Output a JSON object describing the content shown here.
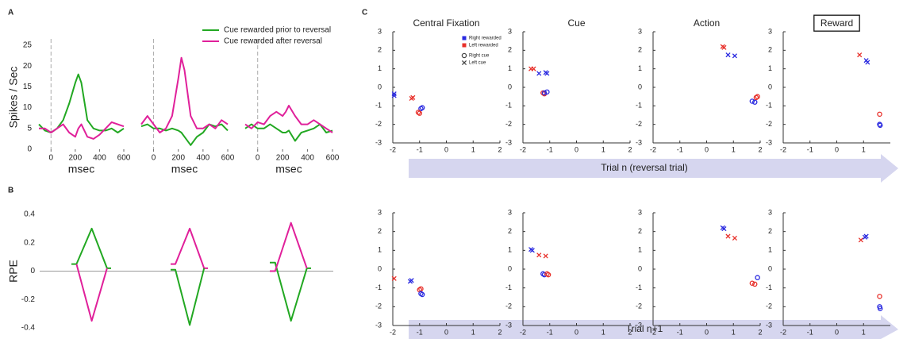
{
  "panel_labels": [
    "A",
    "B",
    "C"
  ],
  "arrows": [
    "Trial n (reversal trial)",
    "Trial n+1"
  ],
  "chart_data": [
    {
      "type": "line",
      "ylabel": "Spikes / Sec",
      "xlabel": "msec",
      "xlim": [
        -100,
        600
      ],
      "xticks": [
        0,
        200,
        400,
        600
      ],
      "ylim": [
        0,
        25
      ],
      "yticks": [
        0,
        5,
        10,
        15,
        20,
        25
      ],
      "legend": "upper right",
      "x": [
        -100,
        -50,
        0,
        50,
        100,
        150,
        200,
        225,
        250,
        300,
        350,
        400,
        450,
        500,
        550,
        600
      ],
      "series": [
        {
          "name": "Cue rewarded prior to reversal",
          "color": "#22a822",
          "values": [
            6,
            4.5,
            4,
            5,
            7,
            11,
            16,
            18,
            16,
            7,
            5,
            4.5,
            4.5,
            5,
            4,
            5
          ]
        },
        {
          "name": "Cue rewarded after reversal",
          "color": "#e0209a",
          "values": [
            5,
            5,
            4,
            5,
            6,
            4,
            3,
            5,
            6,
            3,
            2.5,
            3.5,
            5,
            6.5,
            6,
            5.5
          ]
        }
      ]
    },
    {
      "type": "line",
      "xlabel": "msec",
      "xlim": [
        -100,
        600
      ],
      "xticks": [
        0,
        200,
        400,
        600
      ],
      "ylim": [
        0,
        25
      ],
      "x": [
        -100,
        -50,
        0,
        50,
        100,
        150,
        200,
        225,
        250,
        300,
        350,
        400,
        450,
        500,
        550,
        600
      ],
      "series": [
        {
          "color": "#22a822",
          "values": [
            5.5,
            6,
            5,
            5,
            4.5,
            5,
            4.5,
            4,
            3,
            1,
            3,
            4,
            6,
            5.5,
            6,
            4.5
          ]
        },
        {
          "color": "#e0209a",
          "values": [
            6,
            8,
            6,
            4,
            5,
            8,
            17,
            22,
            19,
            8,
            5,
            5,
            6,
            5,
            7,
            6
          ]
        }
      ]
    },
    {
      "type": "line",
      "xlabel": "msec",
      "xlim": [
        -100,
        600
      ],
      "xticks": [
        0,
        200,
        400,
        600
      ],
      "ylim": [
        0,
        25
      ],
      "x": [
        -100,
        -50,
        0,
        50,
        100,
        150,
        200,
        225,
        250,
        300,
        350,
        400,
        450,
        500,
        550,
        600
      ],
      "series": [
        {
          "color": "#22a822",
          "values": [
            5,
            6,
            5,
            5,
            6,
            5,
            4,
            4,
            4.5,
            2,
            4,
            4.5,
            5,
            6,
            4,
            4.5
          ]
        },
        {
          "color": "#e0209a",
          "values": [
            6,
            5,
            6.5,
            6,
            8,
            9,
            8,
            9,
            10.5,
            8,
            6,
            6,
            7,
            6,
            5,
            4
          ]
        }
      ]
    },
    {
      "type": "line",
      "ylabel": "RPE",
      "ylim": [
        -0.4,
        0.4
      ],
      "yticks": [
        -0.4,
        -0.2,
        0,
        0.2,
        0.4
      ],
      "x": [
        0,
        0.5,
        2,
        3.5,
        3.9
      ],
      "series": [
        {
          "color": "#22a822",
          "values": [
            0.05,
            0.05,
            0.3,
            0.02,
            0.02
          ]
        },
        {
          "color": "#e0209a",
          "values": [
            null,
            0.05,
            -0.35,
            0.02,
            null
          ]
        }
      ]
    },
    {
      "type": "line",
      "ylim": [
        -0.4,
        0.4
      ],
      "x": [
        0,
        0.5,
        2,
        3.5,
        3.9
      ],
      "series": [
        {
          "color": "#e0209a",
          "values": [
            0.05,
            0.05,
            0.3,
            0.02,
            0.02
          ]
        },
        {
          "color": "#22a822",
          "values": [
            0.01,
            0.01,
            -0.38,
            0.02,
            null
          ]
        }
      ]
    },
    {
      "type": "line",
      "ylim": [
        -0.4,
        0.4
      ],
      "x": [
        0,
        0.5,
        2,
        3.5,
        3.9
      ],
      "series": [
        {
          "color": "#22a822",
          "values": [
            0.06,
            0.06,
            -0.35,
            0.02,
            0.02
          ]
        },
        {
          "color": "#e0209a",
          "values": [
            0,
            0,
            0.34,
            0.02,
            null
          ]
        }
      ]
    },
    {
      "type": "scatter",
      "title": "Central Fixation",
      "xlim": [
        -2,
        2
      ],
      "xticks": [
        -2,
        -1,
        0,
        1,
        2
      ],
      "ylim": [
        -3,
        3
      ],
      "yticks": [
        -3,
        -2,
        -1,
        0,
        1,
        2,
        3
      ],
      "legend": [
        {
          "label": "Right rewarded",
          "color": "#2a2ae0",
          "marker": "square"
        },
        {
          "label": "Left rewarded",
          "color": "#e8302a",
          "marker": "square"
        },
        {
          "label": "Right cue",
          "color": "#444444",
          "marker": "o"
        },
        {
          "label": "Left cue",
          "color": "#444444",
          "marker": "x"
        }
      ],
      "series": [
        {
          "color": "#2a2ae0",
          "marker": "x",
          "x": [
            -1.95,
            -1.95
          ],
          "y": [
            -0.45,
            -0.35
          ]
        },
        {
          "color": "#2a2ae0",
          "marker": "o",
          "x": [
            -0.9,
            -0.95
          ],
          "y": [
            -1.1,
            -1.15
          ]
        },
        {
          "color": "#e8302a",
          "marker": "x",
          "x": [
            -1.3,
            -1.25
          ],
          "y": [
            -0.6,
            -0.55
          ]
        },
        {
          "color": "#e8302a",
          "marker": "o",
          "x": [
            -1.0,
            -1.05
          ],
          "y": [
            -1.4,
            -1.35
          ]
        }
      ]
    },
    {
      "type": "scatter",
      "title": "Cue",
      "xlim": [
        -2,
        2
      ],
      "xticks": [
        -2,
        -1,
        0,
        1,
        2
      ],
      "ylim": [
        -3,
        3
      ],
      "yticks": [
        -3,
        -2,
        -1,
        0,
        1,
        2,
        3
      ],
      "series": [
        {
          "color": "#e8302a",
          "marker": "x",
          "x": [
            -1.7,
            -1.6
          ],
          "y": [
            1.0,
            1.0
          ]
        },
        {
          "color": "#2a2ae0",
          "marker": "x",
          "x": [
            -1.4,
            -1.15,
            -1.1
          ],
          "y": [
            0.75,
            0.8,
            0.75
          ]
        },
        {
          "color": "#e8302a",
          "marker": "o",
          "x": [
            -1.25,
            -1.2
          ],
          "y": [
            -0.3,
            -0.35
          ]
        },
        {
          "color": "#2a2ae0",
          "marker": "o",
          "x": [
            -1.1,
            -1.2
          ],
          "y": [
            -0.25,
            -0.3
          ]
        }
      ]
    },
    {
      "type": "scatter",
      "title": "Action",
      "xlim": [
        -2,
        2
      ],
      "xticks": [
        -2,
        -1,
        0,
        1,
        2
      ],
      "ylim": [
        -3,
        3
      ],
      "yticks": [
        -3,
        -2,
        -1,
        0,
        1,
        2,
        3
      ],
      "series": [
        {
          "color": "#e8302a",
          "marker": "x",
          "x": [
            0.6,
            0.65
          ],
          "y": [
            2.2,
            2.15
          ]
        },
        {
          "color": "#2a2ae0",
          "marker": "x",
          "x": [
            0.8,
            1.05
          ],
          "y": [
            1.75,
            1.7
          ]
        },
        {
          "color": "#2a2ae0",
          "marker": "o",
          "x": [
            1.7,
            1.8
          ],
          "y": [
            -0.75,
            -0.8
          ]
        },
        {
          "color": "#e8302a",
          "marker": "o",
          "x": [
            1.9,
            1.85
          ],
          "y": [
            -0.5,
            -0.55
          ]
        }
      ]
    },
    {
      "type": "scatter",
      "title": "Reward",
      "title_boxed": true,
      "xlim": [
        -2,
        2
      ],
      "xticks": [
        -2,
        -1,
        0,
        1
      ],
      "ylim": [
        -3,
        3
      ],
      "yticks": [
        -3,
        -2,
        -1,
        0,
        1,
        2,
        3
      ],
      "series": [
        {
          "color": "#e8302a",
          "marker": "x",
          "x": [
            0.85
          ],
          "y": [
            1.75
          ]
        },
        {
          "color": "#2a2ae0",
          "marker": "x",
          "x": [
            1.1,
            1.15
          ],
          "y": [
            1.45,
            1.35
          ]
        },
        {
          "color": "#e8302a",
          "marker": "o",
          "x": [
            1.6
          ],
          "y": [
            -1.45
          ]
        },
        {
          "color": "#2a2ae0",
          "marker": "o",
          "x": [
            1.6,
            1.62
          ],
          "y": [
            -2.0,
            -2.05
          ]
        }
      ]
    },
    {
      "type": "scatter",
      "xlim": [
        -2,
        2
      ],
      "xticks": [
        -2,
        -1,
        0,
        1,
        2
      ],
      "ylim": [
        -3,
        3
      ],
      "yticks": [
        -3,
        -2,
        -1,
        0,
        1,
        2,
        3
      ],
      "series": [
        {
          "color": "#e8302a",
          "marker": "x",
          "x": [
            -1.95
          ],
          "y": [
            -0.5
          ]
        },
        {
          "color": "#2a2ae0",
          "marker": "x",
          "x": [
            -1.3,
            -1.35
          ],
          "y": [
            -0.6,
            -0.65
          ]
        },
        {
          "color": "#e8302a",
          "marker": "o",
          "x": [
            -1.0,
            -0.95
          ],
          "y": [
            -1.1,
            -1.05
          ]
        },
        {
          "color": "#2a2ae0",
          "marker": "o",
          "x": [
            -0.9,
            -0.95
          ],
          "y": [
            -1.35,
            -1.3
          ]
        }
      ]
    },
    {
      "type": "scatter",
      "xlim": [
        -2,
        2
      ],
      "xticks": [
        -2,
        -1,
        0,
        1,
        2
      ],
      "ylim": [
        -3,
        3
      ],
      "yticks": [
        -3,
        -2,
        -1,
        0,
        1,
        2,
        3
      ],
      "series": [
        {
          "color": "#2a2ae0",
          "marker": "x",
          "x": [
            -1.65,
            -1.7
          ],
          "y": [
            1.0,
            1.05
          ]
        },
        {
          "color": "#e8302a",
          "marker": "x",
          "x": [
            -1.4,
            -1.15
          ],
          "y": [
            0.75,
            0.7
          ]
        },
        {
          "color": "#2a2ae0",
          "marker": "o",
          "x": [
            -1.25,
            -1.2
          ],
          "y": [
            -0.25,
            -0.3
          ]
        },
        {
          "color": "#e8302a",
          "marker": "o",
          "x": [
            -1.05,
            -1.1
          ],
          "y": [
            -0.3,
            -0.25
          ]
        }
      ]
    },
    {
      "type": "scatter",
      "xlim": [
        -2,
        2
      ],
      "xticks": [
        -2,
        -1,
        0,
        1,
        2
      ],
      "ylim": [
        -3,
        3
      ],
      "yticks": [
        -3,
        -2,
        -1,
        0,
        1,
        2,
        3
      ],
      "series": [
        {
          "color": "#2a2ae0",
          "marker": "x",
          "x": [
            0.6,
            0.65
          ],
          "y": [
            2.2,
            2.15
          ]
        },
        {
          "color": "#e8302a",
          "marker": "x",
          "x": [
            0.8,
            1.05
          ],
          "y": [
            1.75,
            1.65
          ]
        },
        {
          "color": "#e8302a",
          "marker": "o",
          "x": [
            1.7,
            1.8
          ],
          "y": [
            -0.75,
            -0.8
          ]
        },
        {
          "color": "#2a2ae0",
          "marker": "o",
          "x": [
            1.9
          ],
          "y": [
            -0.45
          ]
        }
      ]
    },
    {
      "type": "scatter",
      "xlim": [
        -2,
        2
      ],
      "xticks": [
        -2,
        -1,
        0,
        1
      ],
      "ylim": [
        -3,
        3
      ],
      "yticks": [
        -3,
        -2,
        -1,
        0,
        1,
        2,
        3
      ],
      "series": [
        {
          "color": "#2a2ae0",
          "marker": "x",
          "x": [
            1.1,
            1.05
          ],
          "y": [
            1.75,
            1.7
          ]
        },
        {
          "color": "#e8302a",
          "marker": "x",
          "x": [
            0.9
          ],
          "y": [
            1.55
          ]
        },
        {
          "color": "#e8302a",
          "marker": "o",
          "x": [
            1.6
          ],
          "y": [
            -1.45
          ]
        },
        {
          "color": "#2a2ae0",
          "marker": "o",
          "x": [
            1.6,
            1.62
          ],
          "y": [
            -2.0,
            -2.1
          ]
        }
      ]
    }
  ]
}
